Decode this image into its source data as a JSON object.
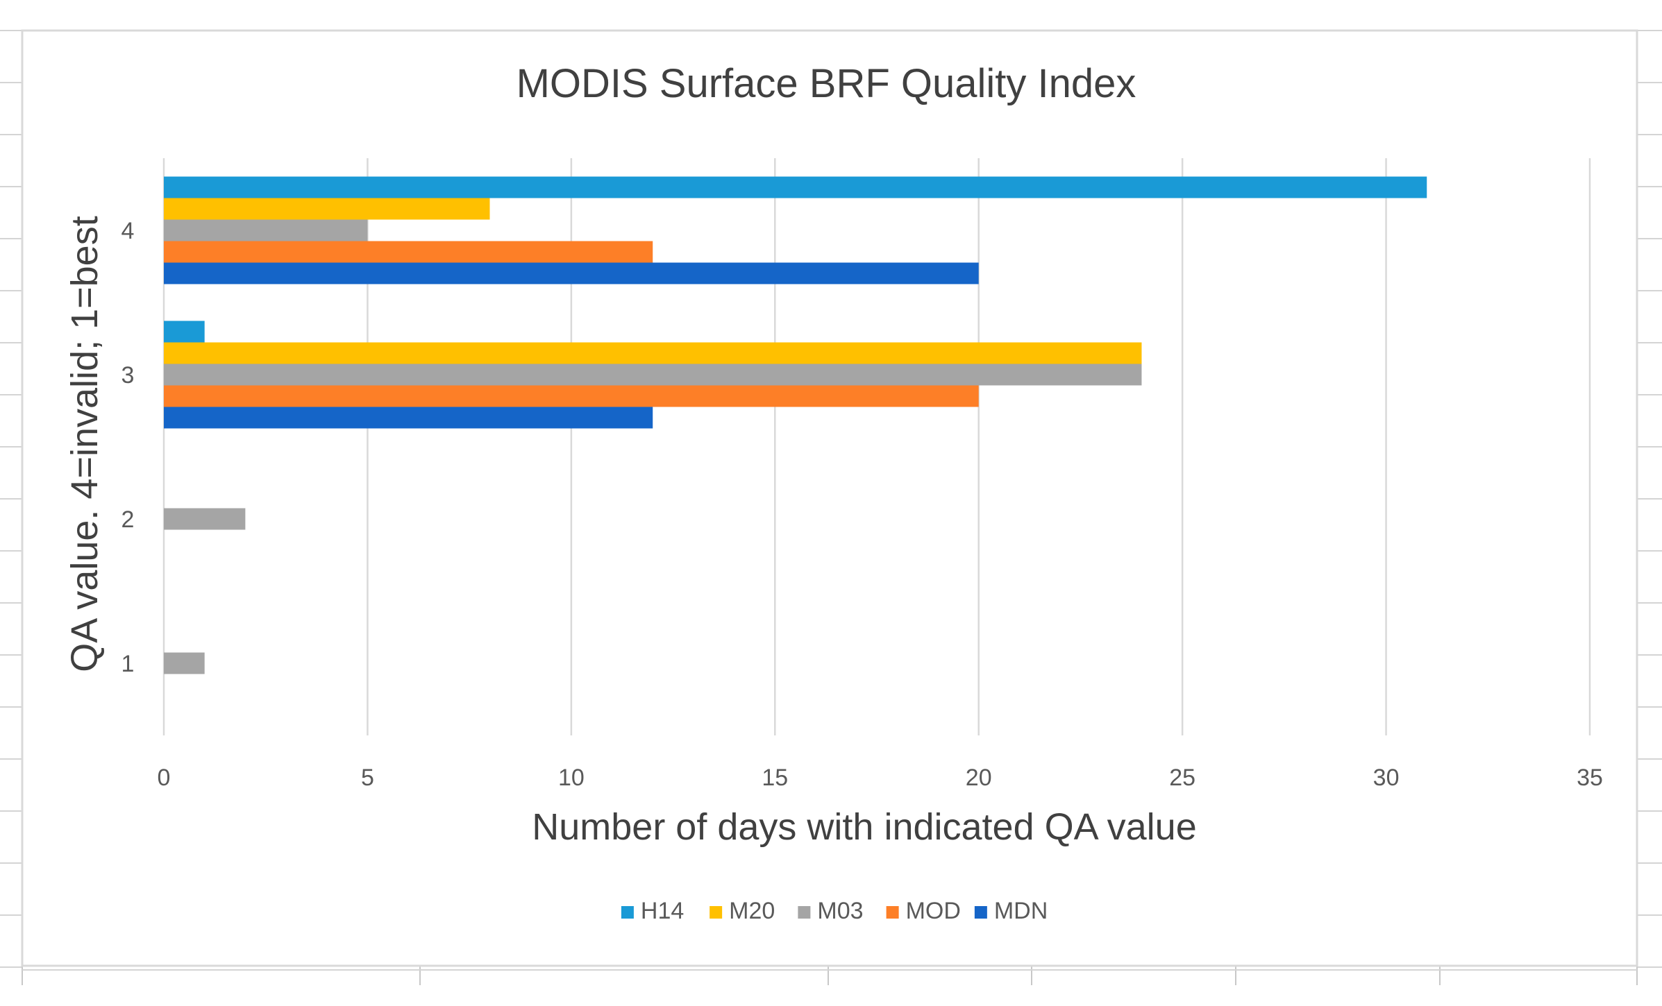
{
  "chart_data": {
    "type": "bar",
    "orientation": "horizontal",
    "title": "MODIS Surface BRF Quality Index",
    "xlabel": "Number of days with indicated QA value",
    "ylabel": "QA value.  4=invalid; 1=best",
    "categories": [
      "1",
      "2",
      "3",
      "4"
    ],
    "xlim": [
      0,
      35
    ],
    "xticks": [
      "0",
      "5",
      "10",
      "15",
      "20",
      "25",
      "30",
      "35"
    ],
    "grid": true,
    "legend_position": "bottom",
    "series": [
      {
        "name": "H14",
        "color": "#1a9ad6",
        "values": [
          0,
          0,
          1,
          31
        ]
      },
      {
        "name": "M20",
        "color": "#ffc000",
        "values": [
          0,
          0,
          24,
          8
        ]
      },
      {
        "name": "M03",
        "color": "#a5a5a5",
        "values": [
          1,
          2,
          24,
          5
        ]
      },
      {
        "name": "MOD",
        "color": "#fd7f27",
        "values": [
          0,
          0,
          20,
          12
        ]
      },
      {
        "name": "MDN",
        "color": "#1565c8",
        "values": [
          0,
          0,
          12,
          20
        ]
      }
    ]
  }
}
